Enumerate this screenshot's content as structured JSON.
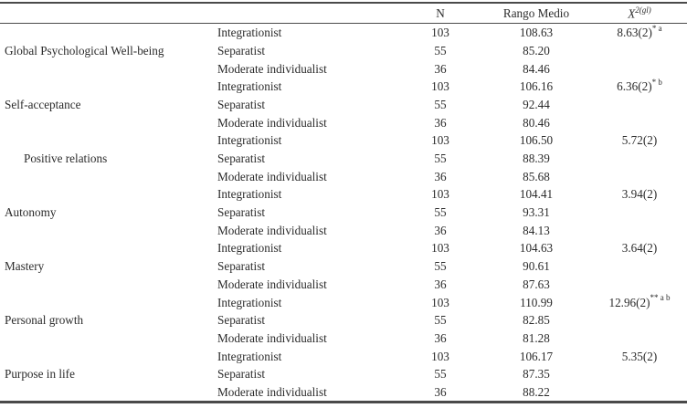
{
  "table": {
    "header": {
      "scale": "",
      "group": "",
      "n": "N",
      "rango": "Rango Medio",
      "chi_base": "X",
      "chi_sup": "2(gl)"
    },
    "rows": [
      {
        "scale": "Global Psychological Well-being",
        "indent": false,
        "entries": [
          {
            "group": "Integrationist",
            "n": "103",
            "rango": "108.63",
            "chi": "8.63(2)",
            "chi_sup": "* a"
          },
          {
            "group": "Separatist",
            "n": "55",
            "rango": "85.20",
            "chi": "",
            "chi_sup": ""
          },
          {
            "group": "Moderate individualist",
            "n": "36",
            "rango": "84.46",
            "chi": "",
            "chi_sup": ""
          }
        ]
      },
      {
        "scale": "Self-acceptance",
        "indent": false,
        "entries": [
          {
            "group": "Integrationist",
            "n": "103",
            "rango": "106.16",
            "chi": "6.36(2)",
            "chi_sup": "* b"
          },
          {
            "group": "Separatist",
            "n": "55",
            "rango": "92.44",
            "chi": "",
            "chi_sup": ""
          },
          {
            "group": "Moderate individualist",
            "n": "36",
            "rango": "80.46",
            "chi": "",
            "chi_sup": ""
          }
        ]
      },
      {
        "scale": "Positive relations",
        "indent": true,
        "entries": [
          {
            "group": "Integrationist",
            "n": "103",
            "rango": "106.50",
            "chi": "5.72(2)",
            "chi_sup": ""
          },
          {
            "group": "Separatist",
            "n": "55",
            "rango": "88.39",
            "chi": "",
            "chi_sup": ""
          },
          {
            "group": "Moderate individualist",
            "n": "36",
            "rango": "85.68",
            "chi": "",
            "chi_sup": ""
          }
        ]
      },
      {
        "scale": "Autonomy",
        "indent": false,
        "entries": [
          {
            "group": "Integrationist",
            "n": "103",
            "rango": "104.41",
            "chi": "3.94(2)",
            "chi_sup": ""
          },
          {
            "group": "Separatist",
            "n": "55",
            "rango": "93.31",
            "chi": "",
            "chi_sup": ""
          },
          {
            "group": "Moderate individualist",
            "n": "36",
            "rango": "84.13",
            "chi": "",
            "chi_sup": ""
          }
        ]
      },
      {
        "scale": "Mastery",
        "indent": false,
        "entries": [
          {
            "group": "Integrationist",
            "n": "103",
            "rango": "104.63",
            "chi": "3.64(2)",
            "chi_sup": ""
          },
          {
            "group": "Separatist",
            "n": "55",
            "rango": "90.61",
            "chi": "",
            "chi_sup": ""
          },
          {
            "group": "Moderate individualist",
            "n": "36",
            "rango": "87.63",
            "chi": "",
            "chi_sup": ""
          }
        ]
      },
      {
        "scale": "Personal growth",
        "indent": false,
        "entries": [
          {
            "group": "Integrationist",
            "n": "103",
            "rango": "110.99",
            "chi": "12.96(2)",
            "chi_sup": "** a b"
          },
          {
            "group": "Separatist",
            "n": "55",
            "rango": "82.85",
            "chi": "",
            "chi_sup": ""
          },
          {
            "group": "Moderate individualist",
            "n": "36",
            "rango": "81.28",
            "chi": "",
            "chi_sup": ""
          }
        ]
      },
      {
        "scale": "Purpose in life",
        "indent": false,
        "entries": [
          {
            "group": "Integrationist",
            "n": "103",
            "rango": "106.17",
            "chi": "5.35(2)",
            "chi_sup": ""
          },
          {
            "group": "Separatist",
            "n": "55",
            "rango": "87.35",
            "chi": "",
            "chi_sup": ""
          },
          {
            "group": "Moderate individualist",
            "n": "36",
            "rango": "88.22",
            "chi": "",
            "chi_sup": ""
          }
        ]
      }
    ]
  }
}
